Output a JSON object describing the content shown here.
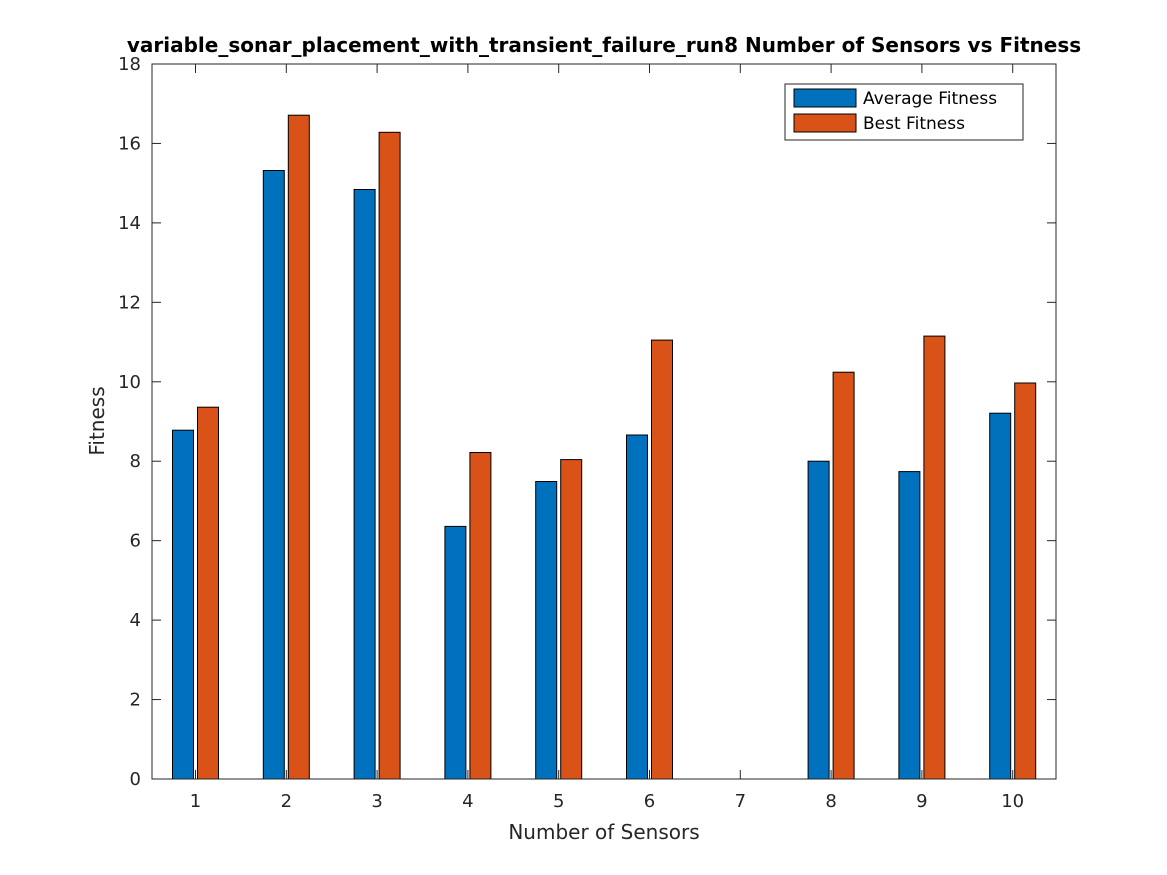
{
  "chart_data": {
    "type": "bar",
    "title": "variable_sonar_placement_with_transient_failure_run8 Number of Sensors vs Fitness",
    "xlabel": "Number of Sensors",
    "ylabel": "Fitness",
    "categories": [
      "1",
      "2",
      "3",
      "4",
      "5",
      "6",
      "7",
      "8",
      "9",
      "10"
    ],
    "ylim": [
      0,
      18
    ],
    "yticks": [
      0,
      2,
      4,
      6,
      8,
      10,
      12,
      14,
      16,
      18
    ],
    "legend_position": "top-right",
    "grid": false,
    "series": [
      {
        "name": "Average Fitness",
        "color": "#0072BD",
        "values": [
          8.78,
          15.32,
          14.84,
          6.36,
          7.49,
          8.66,
          0,
          8.0,
          7.74,
          9.21
        ]
      },
      {
        "name": "Best Fitness",
        "color": "#D95319",
        "values": [
          9.36,
          16.71,
          16.28,
          8.22,
          8.04,
          11.05,
          0,
          10.24,
          11.15,
          9.97
        ]
      }
    ]
  }
}
